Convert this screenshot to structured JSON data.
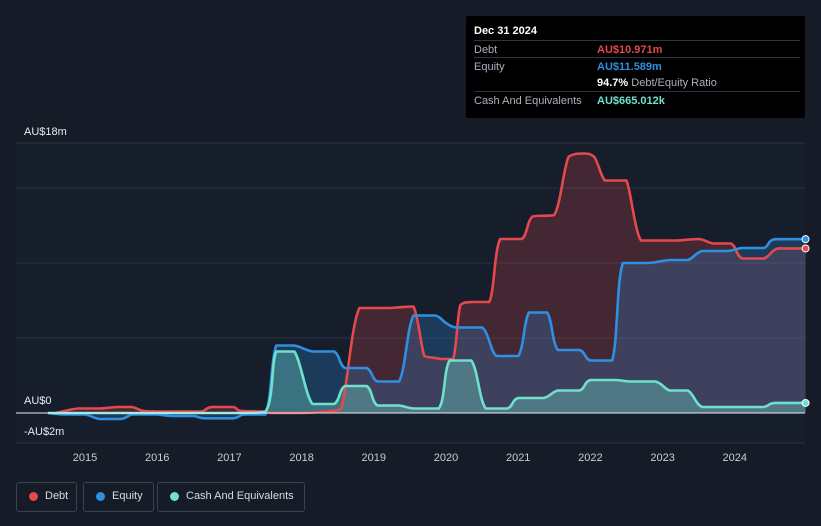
{
  "tooltip": {
    "date": "Dec 31 2024",
    "debt_label": "Debt",
    "debt_value": "AU$10.971m",
    "equity_label": "Equity",
    "equity_value": "AU$11.589m",
    "ratio_value": "94.7%",
    "ratio_label": "Debt/Equity Ratio",
    "cash_label": "Cash And Equivalents",
    "cash_value": "AU$665.012k"
  },
  "legend": {
    "debt": "Debt",
    "equity": "Equity",
    "cash": "Cash And Equivalents"
  },
  "colors": {
    "debt": "#e5484d",
    "equity": "#2f8fe0",
    "cash": "#6fe0cc",
    "background": "#151c28"
  },
  "chart_data": {
    "type": "area",
    "y_unit": "AU$m",
    "ylim": [
      -2,
      18
    ],
    "xlim": [
      2014.4,
      2025.0
    ],
    "y_tick_labels": [
      "AU$18m",
      "AU$0",
      "-AU$2m"
    ],
    "y_tick_values": [
      18,
      0,
      -2
    ],
    "x_ticks": [
      2015,
      2016,
      2017,
      2018,
      2019,
      2020,
      2021,
      2022,
      2023,
      2024
    ],
    "grid": true,
    "legend_position": "bottom-left",
    "series": [
      {
        "name": "Debt",
        "points": [
          [
            2014.6,
            0.0
          ],
          [
            2014.9,
            0.3
          ],
          [
            2015.2,
            0.3
          ],
          [
            2015.45,
            0.4
          ],
          [
            2015.65,
            0.4
          ],
          [
            2015.8,
            0.15
          ],
          [
            2016.0,
            0.1
          ],
          [
            2016.5,
            0.1
          ],
          [
            2016.62,
            0.1
          ],
          [
            2016.75,
            0.4
          ],
          [
            2017.05,
            0.4
          ],
          [
            2017.15,
            0.15
          ],
          [
            2017.45,
            0.1
          ],
          [
            2017.6,
            0.0
          ],
          [
            2018.0,
            0.0
          ],
          [
            2018.35,
            0.1
          ],
          [
            2018.55,
            0.3
          ],
          [
            2018.8,
            7.0
          ],
          [
            2019.2,
            7.0
          ],
          [
            2019.35,
            7.05
          ],
          [
            2019.55,
            7.1
          ],
          [
            2019.7,
            3.8
          ],
          [
            2019.8,
            3.7
          ],
          [
            2019.95,
            3.6
          ],
          [
            2020.1,
            3.6
          ],
          [
            2020.2,
            7.2
          ],
          [
            2020.35,
            7.4
          ],
          [
            2020.6,
            7.4
          ],
          [
            2020.75,
            11.6
          ],
          [
            2021.05,
            11.6
          ],
          [
            2021.2,
            13.1
          ],
          [
            2021.5,
            13.2
          ],
          [
            2021.7,
            17.1
          ],
          [
            2021.9,
            17.3
          ],
          [
            2022.05,
            17.1
          ],
          [
            2022.2,
            15.5
          ],
          [
            2022.35,
            15.5
          ],
          [
            2022.5,
            15.5
          ],
          [
            2022.7,
            11.5
          ],
          [
            2023.0,
            11.5
          ],
          [
            2023.2,
            11.5
          ],
          [
            2023.5,
            11.6
          ],
          [
            2023.7,
            11.3
          ],
          [
            2023.95,
            11.3
          ],
          [
            2024.1,
            10.3
          ],
          [
            2024.4,
            10.3
          ],
          [
            2024.6,
            10.97
          ],
          [
            2024.98,
            10.97
          ]
        ]
      },
      {
        "name": "Equity",
        "points": [
          [
            2014.5,
            0.0
          ],
          [
            2014.7,
            -0.1
          ],
          [
            2015.0,
            -0.1
          ],
          [
            2015.2,
            -0.4
          ],
          [
            2015.5,
            -0.4
          ],
          [
            2015.65,
            -0.1
          ],
          [
            2015.8,
            -0.1
          ],
          [
            2016.0,
            -0.1
          ],
          [
            2016.2,
            -0.2
          ],
          [
            2016.5,
            -0.2
          ],
          [
            2016.65,
            -0.35
          ],
          [
            2017.05,
            -0.35
          ],
          [
            2017.2,
            -0.1
          ],
          [
            2017.5,
            -0.1
          ],
          [
            2017.65,
            4.5
          ],
          [
            2017.9,
            4.5
          ],
          [
            2018.15,
            4.1
          ],
          [
            2018.45,
            4.1
          ],
          [
            2018.6,
            3.0
          ],
          [
            2018.9,
            3.0
          ],
          [
            2019.05,
            2.1
          ],
          [
            2019.35,
            2.1
          ],
          [
            2019.55,
            6.5
          ],
          [
            2019.85,
            6.5
          ],
          [
            2020.0,
            6.0
          ],
          [
            2020.15,
            5.7
          ],
          [
            2020.5,
            5.7
          ],
          [
            2020.7,
            3.8
          ],
          [
            2021.0,
            3.8
          ],
          [
            2021.15,
            6.7
          ],
          [
            2021.4,
            6.7
          ],
          [
            2021.55,
            4.2
          ],
          [
            2021.85,
            4.2
          ],
          [
            2022.0,
            3.5
          ],
          [
            2022.3,
            3.5
          ],
          [
            2022.45,
            10.0
          ],
          [
            2022.8,
            10.0
          ],
          [
            2023.1,
            10.2
          ],
          [
            2023.35,
            10.2
          ],
          [
            2023.55,
            10.8
          ],
          [
            2023.9,
            10.8
          ],
          [
            2024.1,
            11.0
          ],
          [
            2024.4,
            11.0
          ],
          [
            2024.55,
            11.59
          ],
          [
            2024.98,
            11.59
          ]
        ]
      },
      {
        "name": "Cash And Equivalents",
        "points": [
          [
            2014.5,
            0.0
          ],
          [
            2015.0,
            0.0
          ],
          [
            2017.0,
            0.0
          ],
          [
            2017.5,
            0.1
          ],
          [
            2017.65,
            4.1
          ],
          [
            2017.9,
            4.1
          ],
          [
            2018.15,
            0.6
          ],
          [
            2018.45,
            0.6
          ],
          [
            2018.6,
            1.8
          ],
          [
            2018.9,
            1.8
          ],
          [
            2019.05,
            0.5
          ],
          [
            2019.35,
            0.5
          ],
          [
            2019.55,
            0.3
          ],
          [
            2019.9,
            0.3
          ],
          [
            2020.05,
            3.5
          ],
          [
            2020.35,
            3.5
          ],
          [
            2020.55,
            0.3
          ],
          [
            2020.85,
            0.3
          ],
          [
            2021.0,
            1.0
          ],
          [
            2021.35,
            1.0
          ],
          [
            2021.55,
            1.5
          ],
          [
            2021.85,
            1.5
          ],
          [
            2022.0,
            2.2
          ],
          [
            2022.35,
            2.2
          ],
          [
            2022.55,
            2.1
          ],
          [
            2022.9,
            2.1
          ],
          [
            2023.1,
            1.5
          ],
          [
            2023.35,
            1.5
          ],
          [
            2023.55,
            0.4
          ],
          [
            2023.9,
            0.4
          ],
          [
            2024.1,
            0.4
          ],
          [
            2024.4,
            0.4
          ],
          [
            2024.55,
            0.67
          ],
          [
            2024.98,
            0.67
          ]
        ]
      }
    ]
  }
}
